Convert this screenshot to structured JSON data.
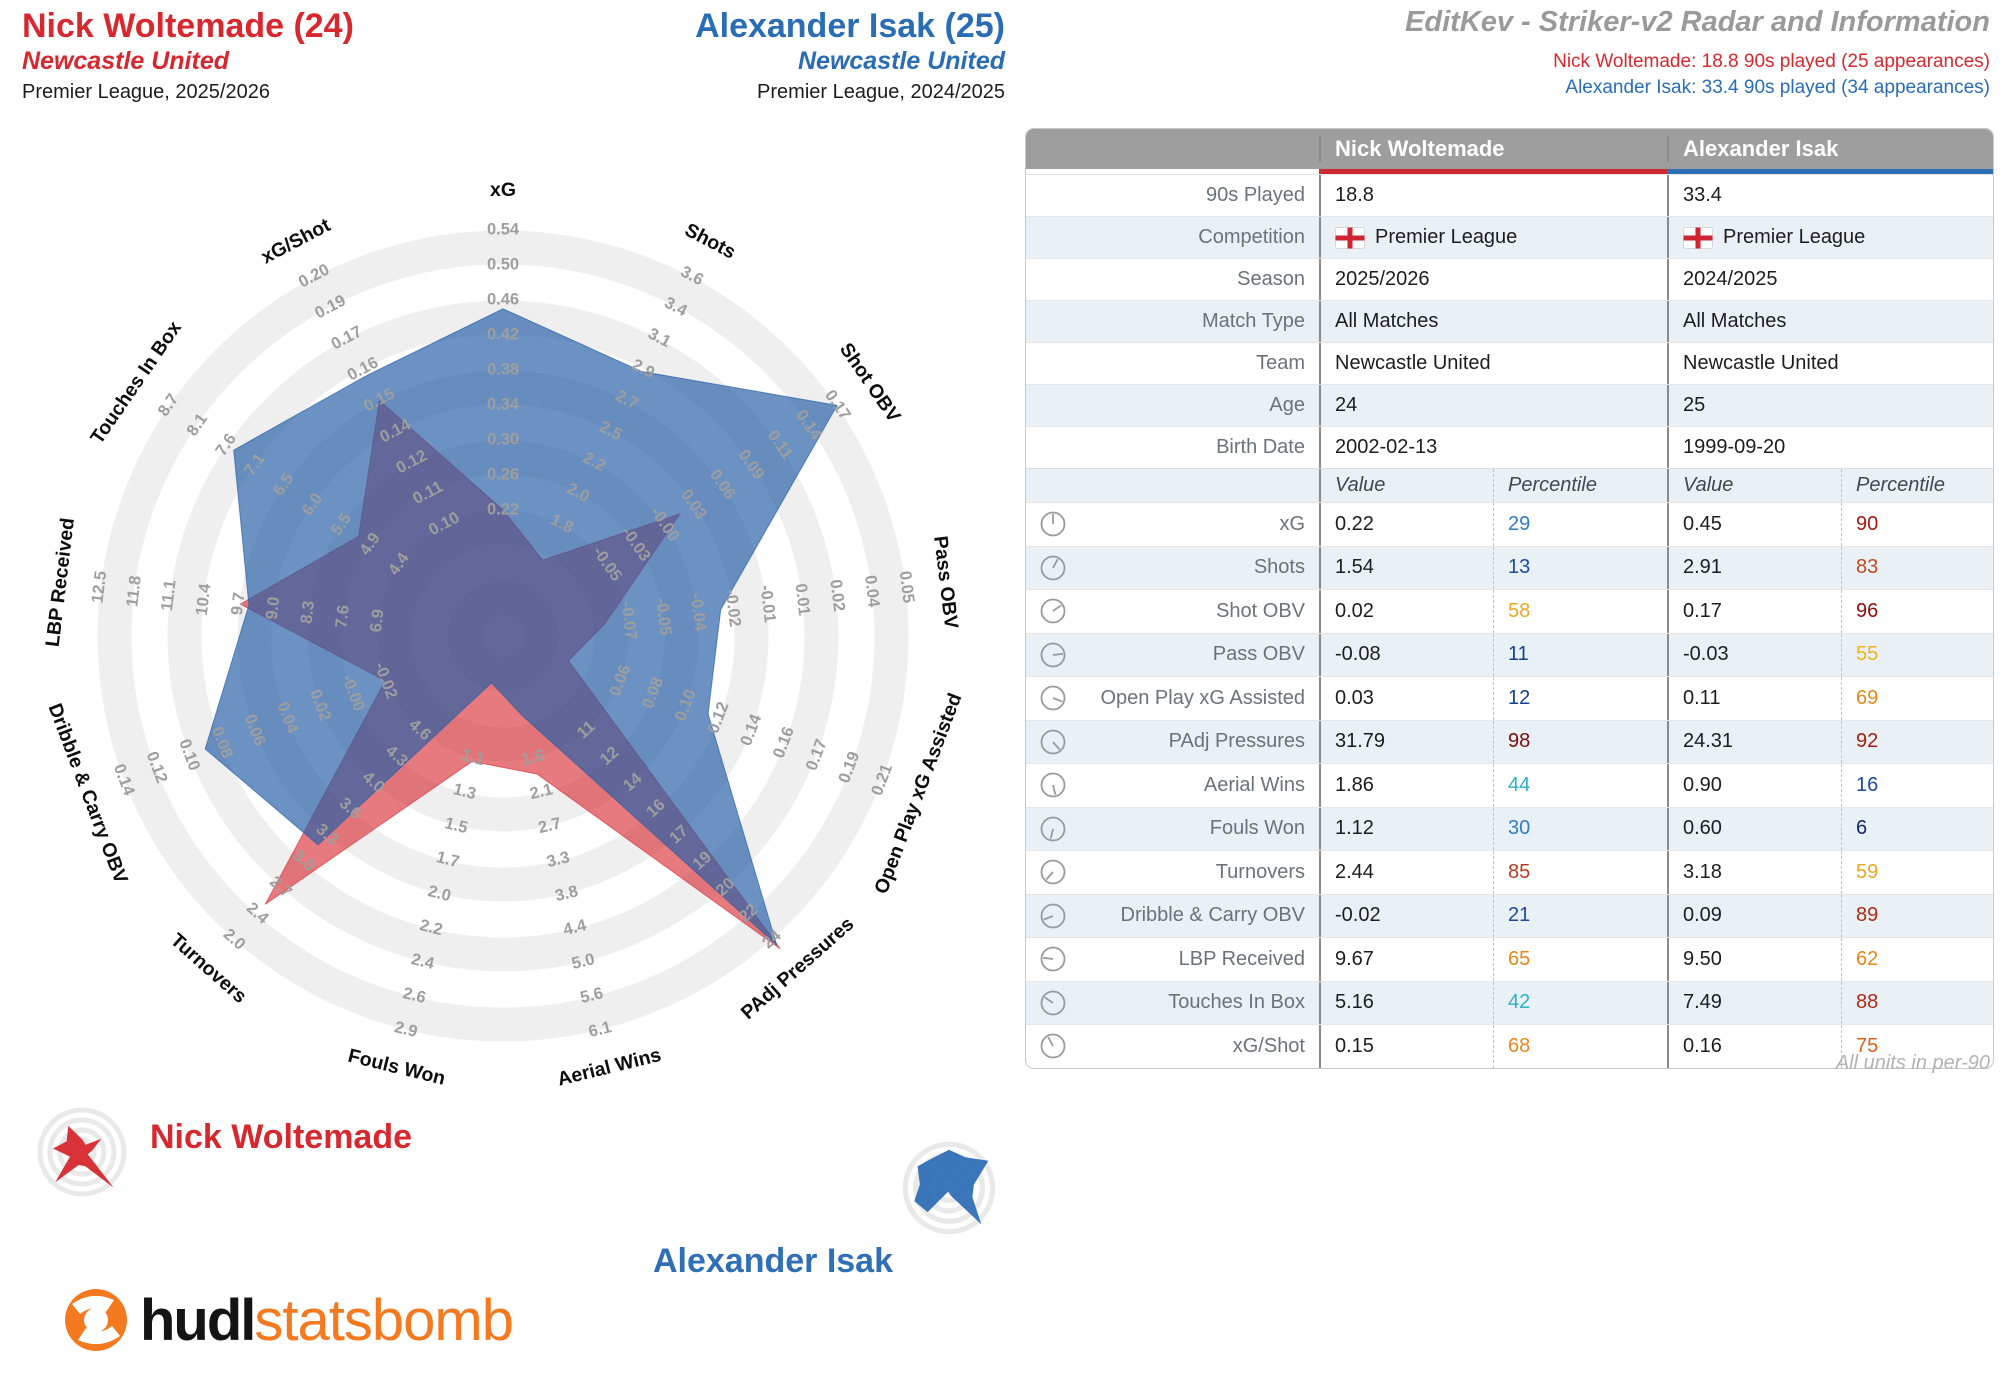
{
  "header": {
    "player1": {
      "title": "Nick Woltemade (24)",
      "club": "Newcastle United",
      "competition": "Premier League, 2025/2026",
      "color": "#d7282f"
    },
    "player2": {
      "title": "Alexander Isak (25)",
      "club": "Newcastle United",
      "competition": "Premier League, 2024/2025",
      "color": "#2a6db5"
    },
    "meta_title": "EditKev - Striker-v2 Radar and Information",
    "meta_sub1": "Nick Woltemade: 18.8 90s played (25 appearances)",
    "meta_sub2": "Alexander Isak: 33.4 90s played (34 appearances)"
  },
  "table": {
    "header": {
      "col1": "Nick Woltemade",
      "col2": "Alexander Isak",
      "underline1": "#cc2a31",
      "underline2": "#2f6fb5"
    },
    "info_rows": [
      {
        "label": "90s Played",
        "p1": "18.8",
        "p2": "33.4",
        "flag": false
      },
      {
        "label": "Competition",
        "p1": "Premier League",
        "p2": "Premier League",
        "flag": true
      },
      {
        "label": "Season",
        "p1": "2025/2026",
        "p2": "2024/2025",
        "flag": false
      },
      {
        "label": "Match Type",
        "p1": "All Matches",
        "p2": "All Matches",
        "flag": false
      },
      {
        "label": "Team",
        "p1": "Newcastle United",
        "p2": "Newcastle United",
        "flag": false
      },
      {
        "label": "Age",
        "p1": "24",
        "p2": "25",
        "flag": false
      },
      {
        "label": "Birth Date",
        "p1": "2002-02-13",
        "p2": "1999-09-20",
        "flag": false
      }
    ],
    "subheader": {
      "value": "Value",
      "percentile": "Percentile"
    },
    "stat_rows": [
      {
        "label": "xG",
        "v1": "0.22",
        "p1": "29",
        "c1": "#2e7cc3",
        "v2": "0.45",
        "p2": "90",
        "c2": "#a21a10"
      },
      {
        "label": "Shots",
        "v1": "1.54",
        "p1": "13",
        "c1": "#1c4a9e",
        "v2": "2.91",
        "p2": "83",
        "c2": "#c04a1a"
      },
      {
        "label": "Shot OBV",
        "v1": "0.02",
        "p1": "58",
        "c1": "#eaa722",
        "v2": "0.17",
        "p2": "96",
        "c2": "#8c0f0c"
      },
      {
        "label": "Pass OBV",
        "v1": "-0.08",
        "p1": "11",
        "c1": "#16418f",
        "v2": "-0.03",
        "p2": "55",
        "c2": "#edb41e"
      },
      {
        "label": "Open Play xG Assisted",
        "v1": "0.03",
        "p1": "12",
        "c1": "#16418f",
        "v2": "0.11",
        "p2": "69",
        "c2": "#e8861a"
      },
      {
        "label": "PAdj Pressures",
        "v1": "31.79",
        "p1": "98",
        "c1": "#7c0c0a",
        "v2": "24.31",
        "p2": "92",
        "c2": "#a51f10"
      },
      {
        "label": "Aerial Wins",
        "v1": "1.86",
        "p1": "44",
        "c1": "#2cb1c5",
        "v2": "0.90",
        "p2": "16",
        "c2": "#1c4a9e"
      },
      {
        "label": "Fouls Won",
        "v1": "1.12",
        "p1": "30",
        "c1": "#2e7cc3",
        "v2": "0.60",
        "p2": "6",
        "c2": "#14256e"
      },
      {
        "label": "Turnovers",
        "v1": "2.44",
        "p1": "85",
        "c1": "#b93a20",
        "v2": "3.18",
        "p2": "59",
        "c2": "#eaa722"
      },
      {
        "label": "Dribble & Carry OBV",
        "v1": "-0.02",
        "p1": "21",
        "c1": "#1c4a9e",
        "v2": "0.09",
        "p2": "89",
        "c2": "#ae2a14"
      },
      {
        "label": "LBP Received",
        "v1": "9.67",
        "p1": "65",
        "c1": "#e8861a",
        "v2": "9.50",
        "p2": "62",
        "c2": "#e8861a"
      },
      {
        "label": "Touches In Box",
        "v1": "5.16",
        "p1": "42",
        "c1": "#2cb1c5",
        "v2": "7.49",
        "p2": "88",
        "c2": "#ae2a14"
      },
      {
        "label": "xG/Shot",
        "v1": "0.15",
        "p1": "68",
        "c1": "#e8861a",
        "v2": "0.16",
        "p2": "75",
        "c2": "#d8641a"
      }
    ],
    "footnote": "All units in per-90"
  },
  "legend": {
    "player1": {
      "label": "Nick Woltemade",
      "color": "#d7282f"
    },
    "player2": {
      "label": "Alexander Isak",
      "color": "#2f6fb5"
    }
  },
  "logo": {
    "brand1": "hudl",
    "brand2": "statsbomb",
    "accent": "#f4791f"
  },
  "chart_data": {
    "type": "radar",
    "title": "Striker-v2 Radar",
    "rings": 9,
    "axes": [
      {
        "label": "xG",
        "ticks": [
          "0.22",
          "0.26",
          "0.30",
          "0.34",
          "0.38",
          "0.42",
          "0.46",
          "0.50",
          "0.54"
        ]
      },
      {
        "label": "Shots",
        "ticks": [
          "1.8",
          "2.0",
          "2.2",
          "2.5",
          "2.7",
          "2.9",
          "3.1",
          "3.4",
          "3.6"
        ]
      },
      {
        "label": "Shot OBV",
        "ticks": [
          "-0.05",
          "-0.03",
          "-0.00",
          "0.03",
          "0.06",
          "0.09",
          "0.11",
          "0.14",
          "0.17"
        ]
      },
      {
        "label": "Pass OBV",
        "ticks": [
          "-0.07",
          "-0.05",
          "-0.04",
          "-0.02",
          "-0.01",
          "0.01",
          "0.02",
          "0.04",
          "0.05"
        ]
      },
      {
        "label": "Open Play xG Assisted",
        "ticks": [
          "0.06",
          "0.08",
          "0.10",
          "0.12",
          "0.14",
          "0.16",
          "0.17",
          "0.19",
          "0.21"
        ]
      },
      {
        "label": "PAdj Pressures",
        "ticks": [
          "11",
          "12",
          "14",
          "16",
          "17",
          "19",
          "20",
          "22",
          "24"
        ]
      },
      {
        "label": "Aerial Wins",
        "ticks": [
          "1.6",
          "2.1",
          "2.7",
          "3.3",
          "3.8",
          "4.4",
          "5.0",
          "5.6",
          "6.1"
        ]
      },
      {
        "label": "Fouls Won",
        "ticks": [
          "1.1",
          "1.3",
          "1.5",
          "1.7",
          "2.0",
          "2.2",
          "2.4",
          "2.6",
          "2.9"
        ]
      },
      {
        "label": "Turnovers",
        "ticks": [
          "4.6",
          "4.3",
          "4.0",
          "3.6",
          "3.3",
          "3.0",
          "2.7",
          "2.4",
          "2.0"
        ]
      },
      {
        "label": "Dribble & Carry OBV",
        "ticks": [
          "-0.02",
          "-0.00",
          "0.02",
          "0.04",
          "0.06",
          "0.08",
          "0.10",
          "0.12",
          "0.14"
        ]
      },
      {
        "label": "LBP Received",
        "ticks": [
          "6.9",
          "7.6",
          "8.3",
          "9.0",
          "9.7",
          "10.4",
          "11.1",
          "11.8",
          "12.5"
        ]
      },
      {
        "label": "Touches In Box",
        "ticks": [
          "4.4",
          "4.9",
          "5.5",
          "6.0",
          "6.5",
          "7.1",
          "7.6",
          "8.1",
          "8.7"
        ]
      },
      {
        "label": "xG/Shot",
        "ticks": [
          "0.10",
          "0.11",
          "0.12",
          "0.14",
          "0.15",
          "0.16",
          "0.17",
          "0.19",
          "0.20"
        ]
      }
    ],
    "series": [
      {
        "name": "Nick Woltemade",
        "fill": "rgba(214,40,48,0.62)",
        "solid": "#d7282f",
        "values": [
          0.22,
          1.54,
          0.02,
          -0.08,
          0.03,
          31.79,
          1.86,
          1.12,
          2.44,
          -0.02,
          9.67,
          5.16,
          0.15
        ]
      },
      {
        "name": "Alexander Isak",
        "fill": "rgba(37,94,167,0.68)",
        "solid": "#2f6fb5",
        "values": [
          0.45,
          2.91,
          0.17,
          -0.03,
          0.11,
          24.31,
          0.9,
          0.6,
          3.18,
          0.09,
          9.5,
          7.49,
          0.16
        ]
      }
    ],
    "style": {
      "band_gray": "#efefef",
      "ring_line": "#ffffff",
      "tick_color": "#9e9e9e",
      "axis_label_color": "#0d0d0d"
    }
  }
}
